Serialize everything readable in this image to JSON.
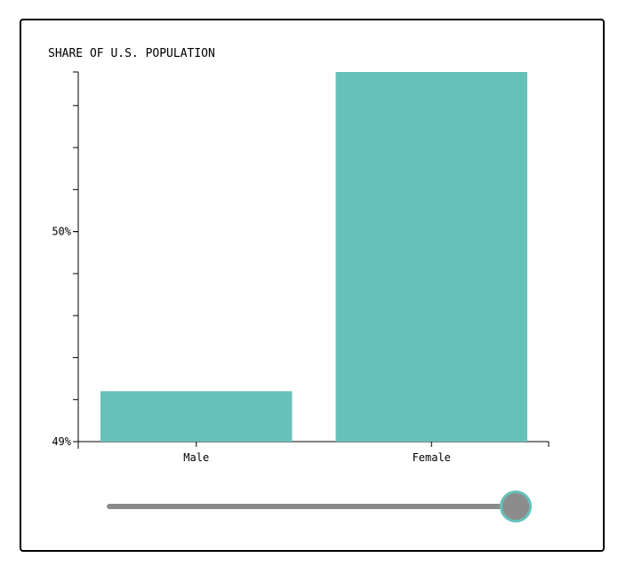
{
  "chart_data": {
    "type": "bar",
    "title": "SHARE OF U.S. POPULATION",
    "categories": [
      "Male",
      "Female"
    ],
    "values": [
      49.24,
      50.76
    ],
    "ylim": [
      49,
      50.76
    ],
    "yticks": [
      49,
      50
    ],
    "ytick_labels": [
      "49%",
      "50%"
    ],
    "y_minor_step": 0.2,
    "bar_color": "#66c1bb",
    "grid": false
  },
  "slider": {
    "value": 1.0,
    "track_color": "#8a8a8a",
    "thumb_color": "#8c8c8c",
    "thumb_border_color": "#66c1bb"
  }
}
